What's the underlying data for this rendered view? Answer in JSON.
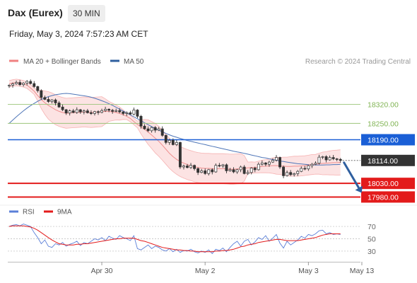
{
  "header": {
    "title": "Dax (Eurex)",
    "timeframe_label": "30 MIN",
    "datetime": "Friday, May 3, 2024 7:57:23 AM CET"
  },
  "legend": {
    "items": [
      {
        "label": "MA 20 + Bollinger Bands",
        "color": "#f08080"
      },
      {
        "label": "MA 50",
        "color": "#2f5f9f"
      }
    ],
    "credit": "Research © 2024 Trading Central"
  },
  "chart_data": [
    {
      "type": "candlestick",
      "ylim": [
        17950,
        18430
      ],
      "price_levels": [
        {
          "value": 18320.0,
          "label": "18320.00",
          "kind": "fib-line",
          "color": "#9bc47a"
        },
        {
          "value": 18250.0,
          "label": "18250.00",
          "kind": "fib-line",
          "color": "#9bc47a"
        },
        {
          "value": 18190.0,
          "label": "18190.00",
          "kind": "resistance",
          "color": "#1a5fd6"
        },
        {
          "value": 18114.0,
          "label": "18114.00",
          "kind": "last-price",
          "color": "#333333"
        },
        {
          "value": 18030.0,
          "label": "18030.00",
          "kind": "support",
          "color": "#e31b1b"
        },
        {
          "value": 17980.0,
          "label": "17980.00",
          "kind": "support",
          "color": "#e31b1b"
        }
      ],
      "closes": [
        18390,
        18395,
        18400,
        18392,
        18398,
        18404,
        18396,
        18385,
        18370,
        18345,
        18338,
        18330,
        18336,
        18325,
        18310,
        18300,
        18288,
        18296,
        18290,
        18300,
        18292,
        18296,
        18289,
        18286,
        18293,
        18290,
        18297,
        18302,
        18298,
        18294,
        18297,
        18292,
        18286,
        18289,
        18284,
        18299,
        18276,
        18240,
        18230,
        18223,
        18235,
        18225,
        18230,
        18206,
        18180,
        18188,
        18172,
        18180,
        18090,
        18094,
        18088,
        18096,
        18084,
        18070,
        18076,
        18066,
        18080,
        18072,
        18096,
        18094,
        18098,
        18076,
        18080,
        18072,
        18080,
        18090,
        18066,
        18070,
        18086,
        18080,
        18100,
        18105,
        18100,
        18108,
        18115,
        18125,
        18090,
        18058,
        18070,
        18062,
        18066,
        18074,
        18085,
        18083,
        18095,
        18100,
        18104,
        18126,
        18128,
        18116,
        18125,
        18120,
        18118,
        18114
      ],
      "ma20": [
        18395,
        18398,
        18400,
        18398,
        18395,
        18390,
        18380,
        18368,
        18352,
        18338,
        18326,
        18316,
        18308,
        18300,
        18294,
        18290,
        18287,
        18288,
        18289,
        18290,
        18291,
        18292,
        18291,
        18290,
        18291,
        18292,
        18293,
        18294,
        18294,
        18292,
        18290,
        18286,
        18282,
        18276,
        18268,
        18257,
        18246,
        18237,
        18228,
        18218,
        18207,
        18196,
        18184,
        18170,
        18155,
        18140,
        18128,
        18118,
        18110,
        18104,
        18099,
        18095,
        18091,
        18088,
        18086,
        18085,
        18085,
        18084,
        18084,
        18084,
        18084,
        18083,
        18082,
        18082,
        18083,
        18084,
        18085,
        18087,
        18088,
        18088,
        18090,
        18092,
        18093,
        18094,
        18095,
        18095,
        18094,
        18093,
        18092,
        18092,
        18093,
        18093,
        18094,
        18095,
        18097,
        18099,
        18100,
        18102,
        18103,
        18104,
        18105,
        18106,
        18106,
        18107
      ],
      "ma50": [
        18250,
        18262,
        18274,
        18285,
        18296,
        18306,
        18315,
        18323,
        18331,
        18338,
        18343,
        18348,
        18352,
        18355,
        18357,
        18359,
        18360,
        18359,
        18357,
        18355,
        18353,
        18351,
        18349,
        18346,
        18342,
        18338,
        18333,
        18328,
        18322,
        18316,
        18309,
        18302,
        18295,
        18288,
        18281,
        18274,
        18267,
        18260,
        18252,
        18245,
        18238,
        18231,
        18225,
        18219,
        18213,
        18208,
        18203,
        18199,
        18195,
        18191,
        18187,
        18184,
        18181,
        18178,
        18175,
        18172,
        18169,
        18166,
        18163,
        18160,
        18157,
        18154,
        18151,
        18148,
        18145,
        18143,
        18140,
        18137,
        18134,
        18131,
        18128,
        18125,
        18123,
        18120,
        18117,
        18115,
        18112,
        18110,
        18108,
        18106,
        18104,
        18102,
        18101,
        18100,
        18099,
        18098,
        18097,
        18097,
        18097,
        18098,
        18098,
        18099,
        18099,
        18100
      ],
      "forecast_arrow": {
        "from": 18114,
        "to": 17985
      }
    },
    {
      "type": "line",
      "series": [
        {
          "name": "RSI",
          "color": "#5b7fd8"
        },
        {
          "name": "9MA",
          "color": "#e31b1b"
        }
      ],
      "ylim": [
        15,
        85
      ],
      "ticks": [
        70,
        50,
        30
      ],
      "rsi": [
        70,
        72,
        73,
        71,
        74,
        72,
        70,
        60,
        52,
        42,
        48,
        38,
        36,
        42,
        40,
        44,
        38,
        41,
        43,
        46,
        39,
        44,
        42,
        46,
        50,
        48,
        52,
        47,
        54,
        51,
        49,
        55,
        52,
        50,
        47,
        55,
        34,
        32,
        36,
        40,
        34,
        38,
        36,
        32,
        30,
        34,
        29,
        33,
        28,
        31,
        30,
        33,
        29,
        27,
        30,
        28,
        32,
        26,
        33,
        31,
        35,
        29,
        36,
        42,
        46,
        38,
        46,
        49,
        40,
        45,
        52,
        49,
        55,
        46,
        51,
        57,
        43,
        35,
        46,
        40,
        44,
        48,
        54,
        51,
        57,
        55,
        58,
        63,
        64,
        58,
        60,
        57,
        58,
        57
      ],
      "ma9": [
        70,
        71,
        71,
        71,
        71,
        70,
        69,
        67,
        64,
        60,
        56,
        52,
        48,
        45,
        42,
        41,
        40,
        40,
        40,
        41,
        41,
        42,
        42,
        43,
        44,
        45,
        46,
        47,
        48,
        49,
        50,
        50,
        51,
        51,
        51,
        51,
        49,
        47,
        46,
        44,
        42,
        40,
        38,
        36,
        35,
        34,
        33,
        32,
        32,
        31,
        31,
        30,
        30,
        29,
        29,
        29,
        29,
        29,
        30,
        30,
        31,
        31,
        32,
        33,
        35,
        37,
        38,
        40,
        41,
        42,
        44,
        45,
        46,
        47,
        48,
        49,
        49,
        48,
        47,
        47,
        47,
        47,
        48,
        49,
        50,
        51,
        52,
        54,
        56,
        57,
        58,
        58,
        58,
        58
      ]
    }
  ],
  "x_axis": {
    "labels": [
      {
        "label": "Apr 30",
        "index": 26
      },
      {
        "label": "May 2",
        "index": 55
      },
      {
        "label": "May 3",
        "index": 84
      },
      {
        "label": "May 13",
        "index": 99
      }
    ]
  }
}
